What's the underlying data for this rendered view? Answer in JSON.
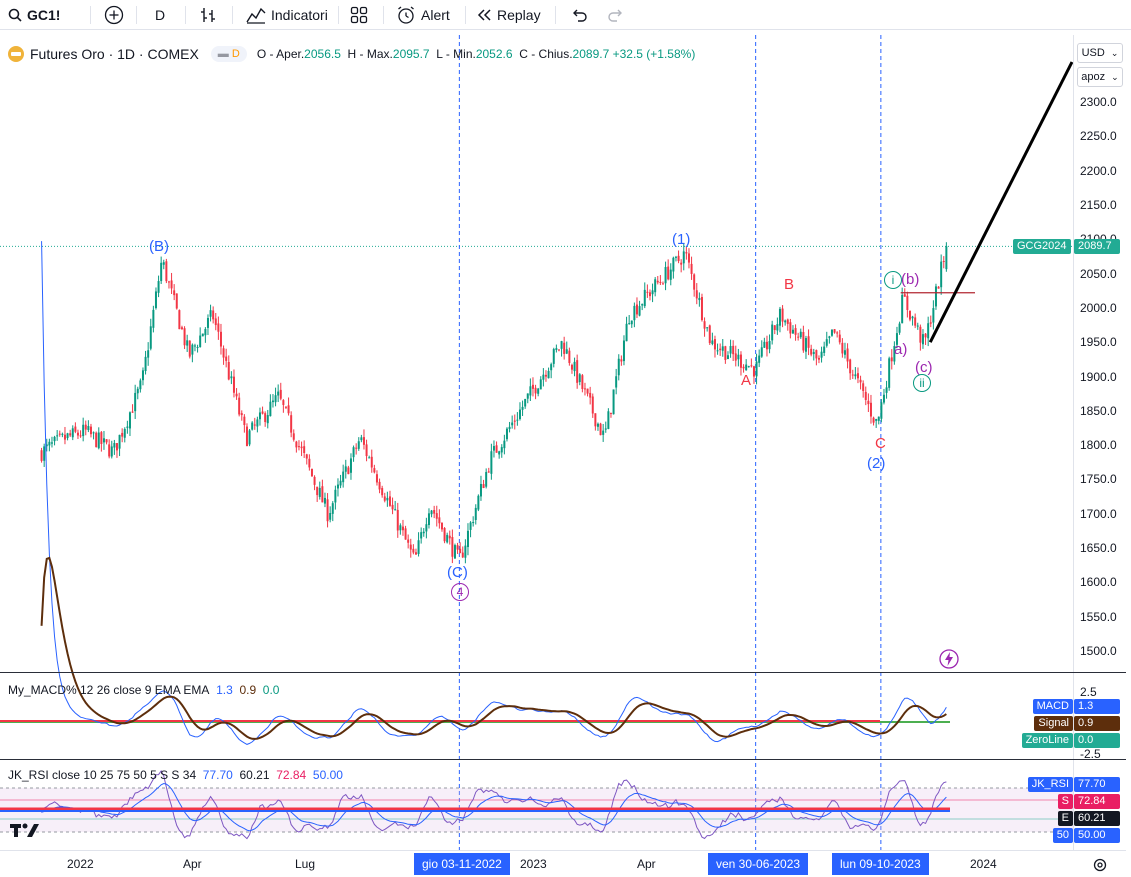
{
  "toolbar": {
    "symbol": "GC1!",
    "interval": "D",
    "indicators_label": "Indicatori",
    "alert_label": "Alert",
    "replay_label": "Replay"
  },
  "legend": {
    "title": "Futures Oro · 1D · COMEX",
    "delay_badge": "D",
    "o_label": "O - Aper.",
    "o_value": "2056.5",
    "h_label": "H - Max.",
    "h_value": "2095.7",
    "l_label": "L - Min.",
    "l_value": "2052.6",
    "c_label": "C - Chius.",
    "c_value": "2089.7",
    "change": "+32.5 (+1.58%)"
  },
  "scale": {
    "currency": "USD",
    "mode": "apoz"
  },
  "price_ticks": [
    "2300.0",
    "2250.0",
    "2200.0",
    "2150.0",
    "2100.0",
    "2050.0",
    "2000.0",
    "1950.0",
    "1900.0",
    "1850.0",
    "1800.0",
    "1750.0",
    "1700.0",
    "1650.0",
    "1600.0",
    "1550.0",
    "1500.0"
  ],
  "last_price": {
    "symbol_label": "GCG2024",
    "value": "2089.7"
  },
  "macd": {
    "legend": "My_MACD% 12 26 close 9 EMA EMA",
    "v1": "1.3",
    "v2": "0.9",
    "v3": "0.0",
    "ticks": [
      "2.5",
      "-2.5"
    ],
    "labels": [
      {
        "name": "MACD",
        "value": "1.3",
        "color": "#2962ff"
      },
      {
        "name": "Signal",
        "value": "0.9",
        "color": "#5d2e0c"
      },
      {
        "name": "ZeroLine",
        "value": "0.0",
        "color": "#22ab94"
      }
    ]
  },
  "rsi": {
    "legend": "JK_RSI close 10 25 75 50 5 S S 34",
    "v1": "77.70",
    "v2": "60.21",
    "v3": "72.84",
    "v4": "50.00",
    "labels": [
      {
        "name": "JK_RSI",
        "value": "77.70",
        "color": "#2962ff"
      },
      {
        "name": "S",
        "value": "72.84",
        "color": "#e91e63"
      },
      {
        "name": "E",
        "value": "60.21",
        "color": "#131722"
      },
      {
        "name": "50",
        "value": "50.00",
        "color": "#2962ff"
      }
    ]
  },
  "time_axis": {
    "ticks": [
      "2022",
      "Apr",
      "Lug",
      "2023",
      "Apr",
      "2024"
    ],
    "highlight_labels": [
      "gio 03-11-2022",
      "ven 30-06-2023",
      "lun 09-10-2023"
    ]
  },
  "waves": [
    "(B)",
    "(C)",
    "4",
    "(1)",
    "A",
    "B",
    "C",
    "(2)",
    "i",
    "(b)",
    "a)",
    "(c)",
    "ii"
  ],
  "chart_data": {
    "type": "candlestick",
    "title": "Futures Oro · 1D · COMEX",
    "ylim": [
      1470,
      2330
    ],
    "x_range": [
      "2021-12",
      "2024-01"
    ],
    "last_close": 2089.7,
    "path_waypoints": [
      {
        "date": "2021-12",
        "price": 1790
      },
      {
        "date": "2021-12-20",
        "price": 1810
      },
      {
        "date": "2022-01-05",
        "price": 1820
      },
      {
        "date": "2022-01-28",
        "price": 1790
      },
      {
        "date": "2022-02-20",
        "price": 1890
      },
      {
        "date": "2022-03-08",
        "price": 2070
      },
      {
        "date": "2022-03-30",
        "price": 1930
      },
      {
        "date": "2022-04-18",
        "price": 1990
      },
      {
        "date": "2022-05-15",
        "price": 1810
      },
      {
        "date": "2022-06-10",
        "price": 1870
      },
      {
        "date": "2022-07-20",
        "price": 1700
      },
      {
        "date": "2022-08-15",
        "price": 1810
      },
      {
        "date": "2022-09-28",
        "price": 1630
      },
      {
        "date": "2022-10-10",
        "price": 1715
      },
      {
        "date": "2022-11-03",
        "price": 1630
      },
      {
        "date": "2022-11-28",
        "price": 1780
      },
      {
        "date": "2023-01-25",
        "price": 1950
      },
      {
        "date": "2023-02-28",
        "price": 1810
      },
      {
        "date": "2023-03-20",
        "price": 1990
      },
      {
        "date": "2023-05-04",
        "price": 2080
      },
      {
        "date": "2023-05-25",
        "price": 1950
      },
      {
        "date": "2023-06-30",
        "price": 1910
      },
      {
        "date": "2023-07-20",
        "price": 1990
      },
      {
        "date": "2023-08-20",
        "price": 1920
      },
      {
        "date": "2023-09-01",
        "price": 1965
      },
      {
        "date": "2023-10-06",
        "price": 1830
      },
      {
        "date": "2023-10-27",
        "price": 2015
      },
      {
        "date": "2023-11-13",
        "price": 1945
      },
      {
        "date": "2023-12-01",
        "price": 2090
      }
    ],
    "projection": [
      {
        "date": "2023-11-13",
        "price": 1950
      },
      {
        "date": "2024-01",
        "price": 2310
      }
    ],
    "horizontal_line": 2022,
    "vertical_markers": [
      "2022-11-03",
      "2023-06-30",
      "2023-10-09"
    ],
    "annotations": [
      {
        "label": "(B)",
        "date": "2022-03-08",
        "price": 2070
      },
      {
        "label": "(C)",
        "date": "2022-11-03",
        "price": 1630
      },
      {
        "label": "4",
        "date": "2022-11-03",
        "price": 1620
      },
      {
        "label": "(1)",
        "date": "2023-05-04",
        "price": 2080
      },
      {
        "label": "A",
        "date": "2023-06-30",
        "price": 1910
      },
      {
        "label": "B",
        "date": "2023-07-20",
        "price": 1990
      },
      {
        "label": "C",
        "date": "2023-10-06",
        "price": 1830
      },
      {
        "label": "(2)",
        "date": "2023-10-06",
        "price": 1830
      },
      {
        "label": "i",
        "date": "2023-10-27",
        "price": 2015
      },
      {
        "label": "(b)",
        "date": "2023-10-27",
        "price": 2015
      },
      {
        "label": "a)",
        "date": "2023-10-22",
        "price": 1950
      },
      {
        "label": "(c)",
        "date": "2023-11-13",
        "price": 1945
      },
      {
        "label": "ii",
        "date": "2023-11-13",
        "price": 1945
      }
    ]
  }
}
